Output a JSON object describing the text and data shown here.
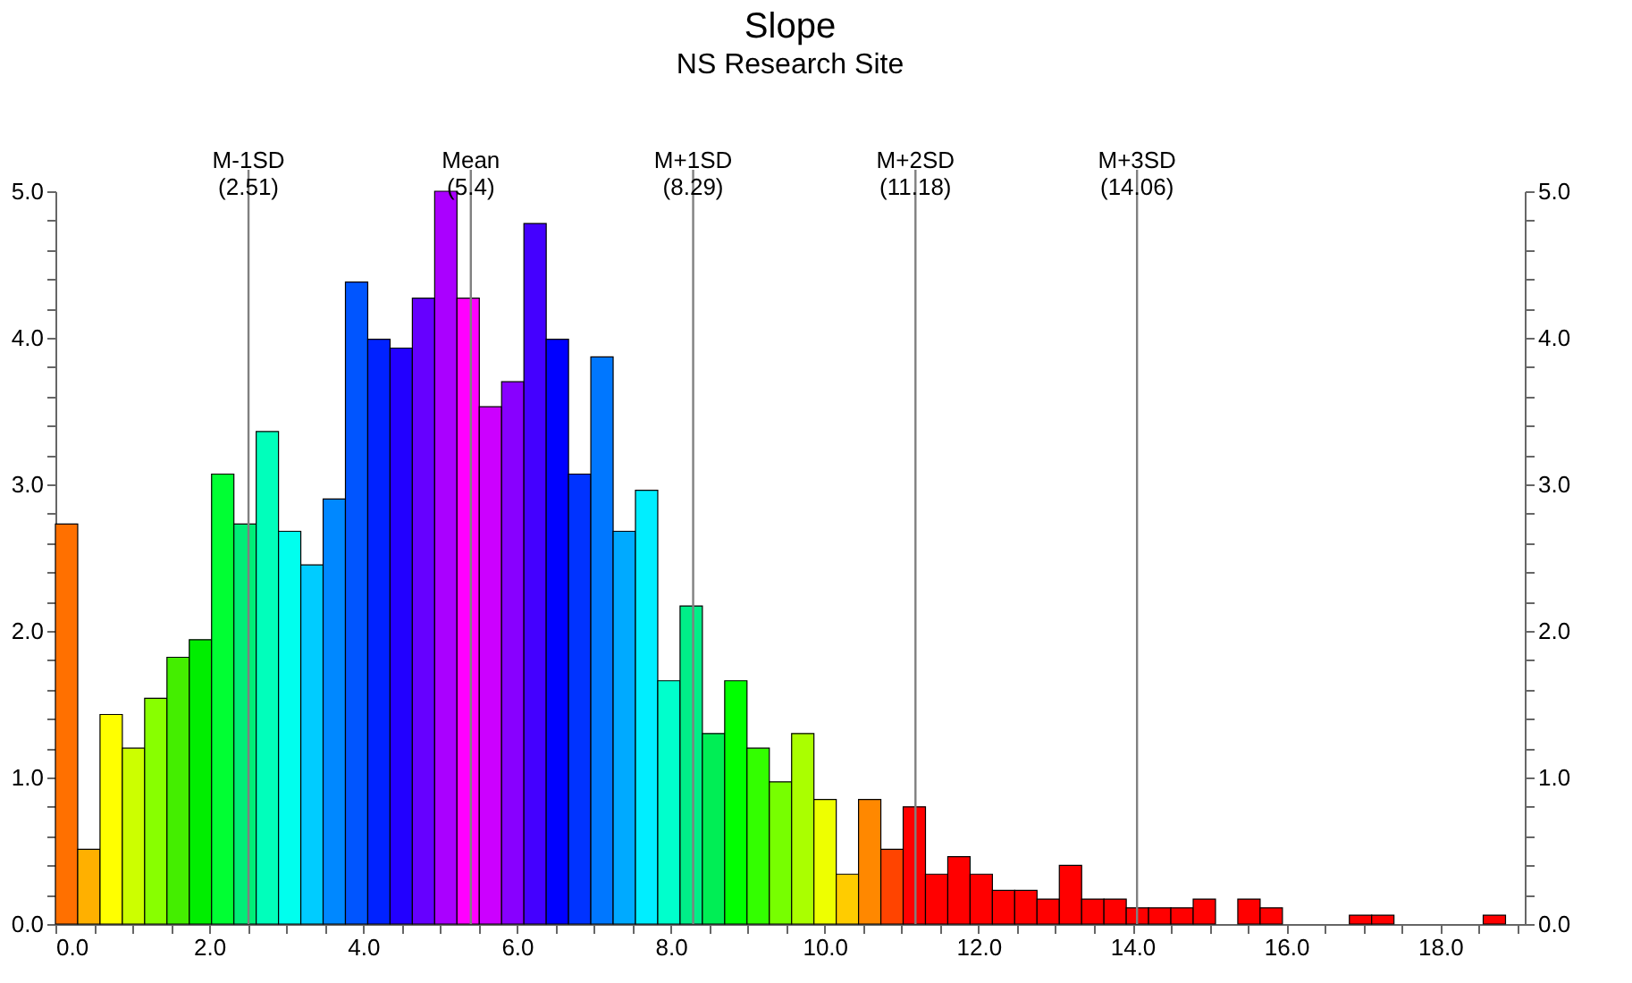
{
  "chart_data": {
    "type": "histogram",
    "title": "Slope",
    "subtitle": "NS Research Site",
    "bins": [
      0,
      0.29,
      0.58,
      0.87,
      1.16,
      1.45,
      1.74,
      2.03,
      2.32,
      2.61,
      2.9,
      3.19,
      3.48,
      3.77,
      4.06,
      4.35,
      4.64,
      4.93,
      5.22,
      5.51,
      5.8,
      6.09,
      6.38,
      6.67,
      6.96,
      7.25,
      7.54,
      7.83,
      8.12,
      8.41,
      8.7,
      8.99,
      9.28,
      9.57,
      9.86,
      10.15,
      10.44,
      10.73,
      11.02,
      11.31,
      11.6,
      11.89,
      12.18,
      12.47,
      12.76,
      13.05,
      13.34,
      13.63,
      13.92,
      14.21,
      14.5,
      14.79,
      15.08,
      15.37,
      15.66,
      15.95,
      16.24,
      16.53,
      16.82,
      17.11,
      17.4,
      17.69,
      17.98,
      18.27,
      18.56,
      18.85
    ],
    "values": [
      2.73,
      0.51,
      1.43,
      1.2,
      1.54,
      1.82,
      1.94,
      3.07,
      2.73,
      3.36,
      2.68,
      2.45,
      2.9,
      4.38,
      3.99,
      3.93,
      4.27,
      5.0,
      4.27,
      3.53,
      3.7,
      4.78,
      3.99,
      3.07,
      3.87,
      2.68,
      2.96,
      1.66,
      2.17,
      1.3,
      1.66,
      1.2,
      0.97,
      1.3,
      0.85,
      0.34,
      0.85,
      0.51,
      0.8,
      0.34,
      0.46,
      0.34,
      0.23,
      0.23,
      0.17,
      0.4,
      0.17,
      0.17,
      0.11,
      0.11,
      0.11,
      0.17,
      0,
      0.17,
      0.11,
      0,
      0,
      0,
      0.06,
      0.06,
      0,
      0,
      0,
      0,
      0.06
    ],
    "colors": [
      "#ff7000",
      "#ffb000",
      "#ffff00",
      "#ccff00",
      "#88ff00",
      "#44ee00",
      "#00ee00",
      "#00ff33",
      "#00ee77",
      "#00ffbb",
      "#00ffee",
      "#00ccff",
      "#0088ff",
      "#0055ff",
      "#0022ff",
      "#2200ff",
      "#6600ff",
      "#aa00ff",
      "#ff00ff",
      "#cc00ff",
      "#8800ff",
      "#4400ff",
      "#0000ff",
      "#0033ff",
      "#0077ff",
      "#00aaff",
      "#00eeff",
      "#00ffcc",
      "#00ee88",
      "#00ee55",
      "#00ff00",
      "#33ff00",
      "#77ff00",
      "#aaff00",
      "#eeff00",
      "#ffcc00",
      "#ff8800",
      "#ff4400",
      "#ff0000",
      "#ff0000",
      "#ff0000",
      "#ff0000",
      "#ff0000",
      "#ff0000",
      "#ff0000",
      "#ff0000",
      "#ff0000",
      "#ff0000",
      "#ff0000",
      "#ff0000",
      "#ff0000",
      "#ff0000",
      "#ff0000",
      "#ff0000",
      "#ff0000",
      "#ff0000",
      "#ff0000",
      "#ff0000",
      "#ff0000",
      "#ff0000",
      "#ff0000",
      "#ff0000",
      "#ff0000",
      "#ff0000",
      "#ff0000"
    ],
    "xlim": [
      0,
      19.1
    ],
    "xticks": [
      {
        "value": 0,
        "label": "0.0"
      },
      {
        "value": 0.5,
        "label": null
      },
      {
        "value": 1,
        "label": null
      },
      {
        "value": 1.5,
        "label": null
      },
      {
        "value": 2,
        "label": "2.0"
      },
      {
        "value": 2.5,
        "label": null
      },
      {
        "value": 3,
        "label": null
      },
      {
        "value": 3.5,
        "label": null
      },
      {
        "value": 4,
        "label": "4.0"
      },
      {
        "value": 4.5,
        "label": null
      },
      {
        "value": 5,
        "label": null
      },
      {
        "value": 5.5,
        "label": null
      },
      {
        "value": 6,
        "label": "6.0"
      },
      {
        "value": 6.5,
        "label": null
      },
      {
        "value": 7,
        "label": null
      },
      {
        "value": 7.5,
        "label": null
      },
      {
        "value": 8,
        "label": "8.0"
      },
      {
        "value": 8.5,
        "label": null
      },
      {
        "value": 9,
        "label": null
      },
      {
        "value": 9.5,
        "label": null
      },
      {
        "value": 10,
        "label": "10.0"
      },
      {
        "value": 10.5,
        "label": null
      },
      {
        "value": 11,
        "label": null
      },
      {
        "value": 11.5,
        "label": null
      },
      {
        "value": 12,
        "label": "12.0"
      },
      {
        "value": 12.5,
        "label": null
      },
      {
        "value": 13,
        "label": null
      },
      {
        "value": 13.5,
        "label": null
      },
      {
        "value": 14,
        "label": "14.0"
      },
      {
        "value": 14.5,
        "label": null
      },
      {
        "value": 15,
        "label": null
      },
      {
        "value": 15.5,
        "label": null
      },
      {
        "value": 16,
        "label": "16.0"
      },
      {
        "value": 16.5,
        "label": null
      },
      {
        "value": 17,
        "label": null
      },
      {
        "value": 17.5,
        "label": null
      },
      {
        "value": 18,
        "label": "18.0"
      },
      {
        "value": 18.5,
        "label": null
      },
      {
        "value": 19,
        "label": null
      }
    ],
    "ylim": [
      0,
      5
    ],
    "yticks": [
      {
        "value": 0,
        "label": "0.0"
      },
      {
        "value": 0.2,
        "label": null
      },
      {
        "value": 0.4,
        "label": null
      },
      {
        "value": 0.6,
        "label": null
      },
      {
        "value": 0.8,
        "label": null
      },
      {
        "value": 1,
        "label": "1.0"
      },
      {
        "value": 1.2,
        "label": null
      },
      {
        "value": 1.4,
        "label": null
      },
      {
        "value": 1.6,
        "label": null
      },
      {
        "value": 1.8,
        "label": null
      },
      {
        "value": 2,
        "label": "2.0"
      },
      {
        "value": 2.2,
        "label": null
      },
      {
        "value": 2.4,
        "label": null
      },
      {
        "value": 2.6,
        "label": null
      },
      {
        "value": 2.8,
        "label": null
      },
      {
        "value": 3,
        "label": "3.0"
      },
      {
        "value": 3.2,
        "label": null
      },
      {
        "value": 3.4,
        "label": null
      },
      {
        "value": 3.6,
        "label": null
      },
      {
        "value": 3.8,
        "label": null
      },
      {
        "value": 4,
        "label": "4.0"
      },
      {
        "value": 4.2,
        "label": null
      },
      {
        "value": 4.4,
        "label": null
      },
      {
        "value": 4.6,
        "label": null
      },
      {
        "value": 4.8,
        "label": null
      },
      {
        "value": 5,
        "label": "5.0"
      }
    ],
    "y2lim": [
      0,
      5
    ],
    "y2ticks": [
      {
        "value": 0,
        "label": "0.0"
      },
      {
        "value": 0.2,
        "label": null
      },
      {
        "value": 0.4,
        "label": null
      },
      {
        "value": 0.6,
        "label": null
      },
      {
        "value": 0.8,
        "label": null
      },
      {
        "value": 1,
        "label": "1.0"
      },
      {
        "value": 1.2,
        "label": null
      },
      {
        "value": 1.4,
        "label": null
      },
      {
        "value": 1.6,
        "label": null
      },
      {
        "value": 1.8,
        "label": null
      },
      {
        "value": 2,
        "label": "2.0"
      },
      {
        "value": 2.2,
        "label": null
      },
      {
        "value": 2.4,
        "label": null
      },
      {
        "value": 2.6,
        "label": null
      },
      {
        "value": 2.8,
        "label": null
      },
      {
        "value": 3,
        "label": "3.0"
      },
      {
        "value": 3.2,
        "label": null
      },
      {
        "value": 3.4,
        "label": null
      },
      {
        "value": 3.6,
        "label": null
      },
      {
        "value": 3.8,
        "label": null
      },
      {
        "value": 4,
        "label": "4.0"
      },
      {
        "value": 4.2,
        "label": null
      },
      {
        "value": 4.4,
        "label": null
      },
      {
        "value": 4.6,
        "label": null
      },
      {
        "value": 4.8,
        "label": null
      },
      {
        "value": 5,
        "label": "5.0"
      }
    ],
    "ref_lines": [
      {
        "axis": "x",
        "value": 2.51,
        "label": "M-1SD\n(2.51)",
        "color": "#808080"
      },
      {
        "axis": "x",
        "value": 5.4,
        "label": "Mean\n(5.4)",
        "color": "#808080"
      },
      {
        "axis": "x",
        "value": 8.29,
        "label": "M+1SD\n(8.29)",
        "color": "#808080"
      },
      {
        "axis": "x",
        "value": 11.18,
        "label": "M+2SD\n(11.18)",
        "color": "#808080"
      },
      {
        "axis": "x",
        "value": 14.06,
        "label": "M+3SD\n(14.06)",
        "color": "#808080"
      }
    ],
    "grid": false,
    "legend": false
  }
}
